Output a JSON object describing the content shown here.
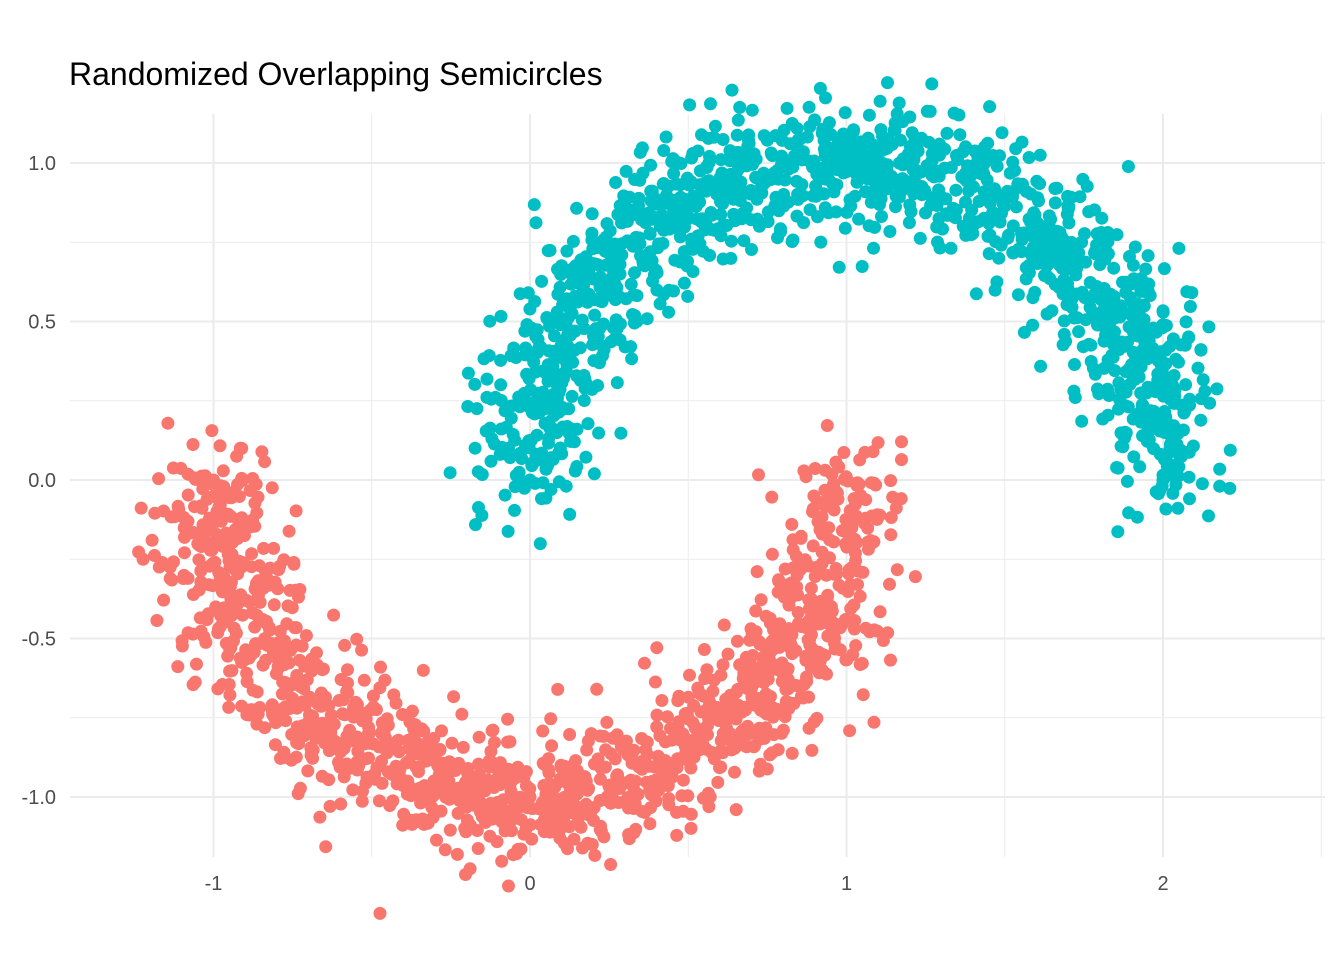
{
  "chart_data": {
    "type": "scatter",
    "title": "Randomized Overlapping Semicircles",
    "xlabel": "",
    "ylabel": "",
    "xlim": [
      -1.4,
      2.5
    ],
    "ylim": [
      -1.12,
      1.12
    ],
    "x_ticks": [
      -1,
      0,
      1,
      2
    ],
    "x_tick_labels": [
      "-1",
      "0",
      "1",
      "2"
    ],
    "y_ticks": [
      -1.0,
      -0.5,
      0.0,
      0.5,
      1.0
    ],
    "y_tick_labels": [
      "-1.0",
      "-0.5",
      "0.0",
      "0.5",
      "1.0"
    ],
    "grid": true,
    "legend": "none",
    "series": [
      {
        "color": "#F8766D",
        "shape": "lower semicircle",
        "center": [
          0,
          0
        ],
        "radius": 1.0,
        "noise_sd": 0.1,
        "n_points": 1400,
        "sample_points": [
          [
            -1.0,
            0.0
          ],
          [
            -0.71,
            -0.71
          ],
          [
            0.0,
            -1.0
          ],
          [
            0.71,
            -0.71
          ],
          [
            1.0,
            0.0
          ]
        ]
      },
      {
        "color": "#00BFC4",
        "shape": "upper semicircle",
        "center": [
          1.0,
          0.0
        ],
        "radius": 1.0,
        "noise_sd": 0.1,
        "n_points": 1400,
        "sample_points": [
          [
            0.0,
            0.0
          ],
          [
            0.29,
            0.71
          ],
          [
            1.0,
            1.0
          ],
          [
            1.71,
            0.71
          ],
          [
            2.0,
            0.0
          ]
        ]
      }
    ]
  }
}
